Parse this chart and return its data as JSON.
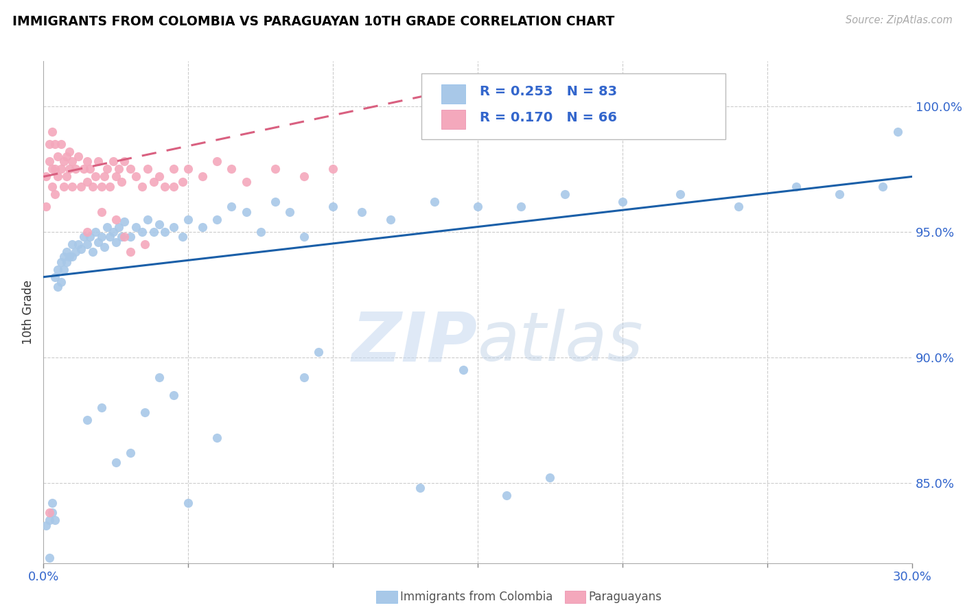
{
  "title": "IMMIGRANTS FROM COLOMBIA VS PARAGUAYAN 10TH GRADE CORRELATION CHART",
  "source": "Source: ZipAtlas.com",
  "ylabel": "10th Grade",
  "xlim": [
    0.0,
    0.3
  ],
  "ylim": [
    0.818,
    1.018
  ],
  "yticks": [
    0.85,
    0.9,
    0.95,
    1.0
  ],
  "ytick_labels": [
    "85.0%",
    "90.0%",
    "95.0%",
    "100.0%"
  ],
  "xtick_minor_positions": [
    0.05,
    0.1,
    0.15,
    0.2,
    0.25
  ],
  "legend_text_color": "#3366cc",
  "blue_color": "#a8c8e8",
  "pink_color": "#f4a8bc",
  "blue_line_color": "#1a5fa8",
  "pink_line_color": "#d96080",
  "watermark_zip": "ZIP",
  "watermark_atlas": "atlas",
  "blue_R": 0.253,
  "blue_N": 83,
  "pink_R": 0.17,
  "pink_N": 66,
  "blue_line_x": [
    0.0,
    0.3
  ],
  "blue_line_y": [
    0.932,
    0.972
  ],
  "pink_line_x": [
    0.0,
    0.135
  ],
  "pink_line_y": [
    0.972,
    1.005
  ],
  "blue_x": [
    0.001,
    0.002,
    0.002,
    0.003,
    0.003,
    0.004,
    0.004,
    0.005,
    0.005,
    0.006,
    0.006,
    0.007,
    0.007,
    0.008,
    0.008,
    0.009,
    0.01,
    0.01,
    0.011,
    0.012,
    0.013,
    0.014,
    0.015,
    0.016,
    0.017,
    0.018,
    0.019,
    0.02,
    0.021,
    0.022,
    0.023,
    0.024,
    0.025,
    0.026,
    0.027,
    0.028,
    0.03,
    0.032,
    0.034,
    0.036,
    0.038,
    0.04,
    0.042,
    0.045,
    0.048,
    0.05,
    0.055,
    0.06,
    0.065,
    0.07,
    0.075,
    0.08,
    0.085,
    0.09,
    0.1,
    0.11,
    0.12,
    0.135,
    0.15,
    0.165,
    0.18,
    0.2,
    0.22,
    0.24,
    0.26,
    0.275,
    0.29,
    0.295,
    0.13,
    0.145,
    0.16,
    0.175,
    0.09,
    0.095,
    0.015,
    0.02,
    0.025,
    0.03,
    0.035,
    0.04,
    0.045,
    0.05,
    0.06
  ],
  "blue_y": [
    0.833,
    0.82,
    0.835,
    0.838,
    0.842,
    0.835,
    0.932,
    0.928,
    0.935,
    0.93,
    0.938,
    0.935,
    0.94,
    0.938,
    0.942,
    0.94,
    0.94,
    0.945,
    0.942,
    0.945,
    0.943,
    0.948,
    0.945,
    0.948,
    0.942,
    0.95,
    0.946,
    0.948,
    0.944,
    0.952,
    0.948,
    0.95,
    0.946,
    0.952,
    0.948,
    0.954,
    0.948,
    0.952,
    0.95,
    0.955,
    0.95,
    0.953,
    0.95,
    0.952,
    0.948,
    0.955,
    0.952,
    0.955,
    0.96,
    0.958,
    0.95,
    0.962,
    0.958,
    0.948,
    0.96,
    0.958,
    0.955,
    0.962,
    0.96,
    0.96,
    0.965,
    0.962,
    0.965,
    0.96,
    0.968,
    0.965,
    0.968,
    0.99,
    0.848,
    0.895,
    0.845,
    0.852,
    0.892,
    0.902,
    0.875,
    0.88,
    0.858,
    0.862,
    0.878,
    0.892,
    0.885,
    0.842,
    0.868
  ],
  "pink_x": [
    0.001,
    0.001,
    0.002,
    0.002,
    0.003,
    0.003,
    0.003,
    0.004,
    0.004,
    0.004,
    0.005,
    0.005,
    0.006,
    0.006,
    0.007,
    0.007,
    0.008,
    0.008,
    0.009,
    0.009,
    0.01,
    0.01,
    0.011,
    0.012,
    0.013,
    0.014,
    0.015,
    0.015,
    0.016,
    0.017,
    0.018,
    0.019,
    0.02,
    0.021,
    0.022,
    0.023,
    0.024,
    0.025,
    0.026,
    0.027,
    0.028,
    0.03,
    0.032,
    0.034,
    0.036,
    0.038,
    0.04,
    0.042,
    0.045,
    0.048,
    0.05,
    0.055,
    0.06,
    0.065,
    0.07,
    0.08,
    0.09,
    0.1,
    0.025,
    0.028,
    0.03,
    0.002,
    0.015,
    0.02,
    0.035,
    0.045
  ],
  "pink_y": [
    0.972,
    0.96,
    0.978,
    0.985,
    0.975,
    0.968,
    0.99,
    0.985,
    0.975,
    0.965,
    0.98,
    0.972,
    0.985,
    0.975,
    0.978,
    0.968,
    0.98,
    0.972,
    0.982,
    0.975,
    0.978,
    0.968,
    0.975,
    0.98,
    0.968,
    0.975,
    0.978,
    0.97,
    0.975,
    0.968,
    0.972,
    0.978,
    0.968,
    0.972,
    0.975,
    0.968,
    0.978,
    0.972,
    0.975,
    0.97,
    0.978,
    0.975,
    0.972,
    0.968,
    0.975,
    0.97,
    0.972,
    0.968,
    0.975,
    0.97,
    0.975,
    0.972,
    0.978,
    0.975,
    0.97,
    0.975,
    0.972,
    0.975,
    0.955,
    0.948,
    0.942,
    0.838,
    0.95,
    0.958,
    0.945,
    0.968
  ]
}
